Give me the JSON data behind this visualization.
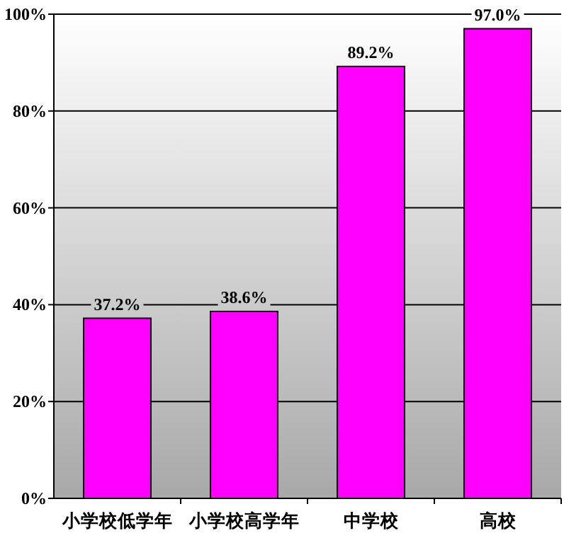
{
  "chart_data": {
    "type": "bar",
    "categories": [
      "小学校低学年",
      "小学校高学年",
      "中学校",
      "高校"
    ],
    "values": [
      37.2,
      38.6,
      89.2,
      97.0
    ],
    "value_labels": [
      "37.2%",
      "38.6%",
      "89.2%",
      "97.0%"
    ],
    "color": "#ff00ff",
    "ylim": [
      0,
      100
    ],
    "yticks": [
      {
        "value": 0,
        "label": "0%"
      },
      {
        "value": 20,
        "label": "20%"
      },
      {
        "value": 40,
        "label": "40%"
      },
      {
        "value": 60,
        "label": "60%"
      },
      {
        "value": 80,
        "label": "80%"
      },
      {
        "value": 100,
        "label": "100%"
      }
    ],
    "grid": "y"
  }
}
